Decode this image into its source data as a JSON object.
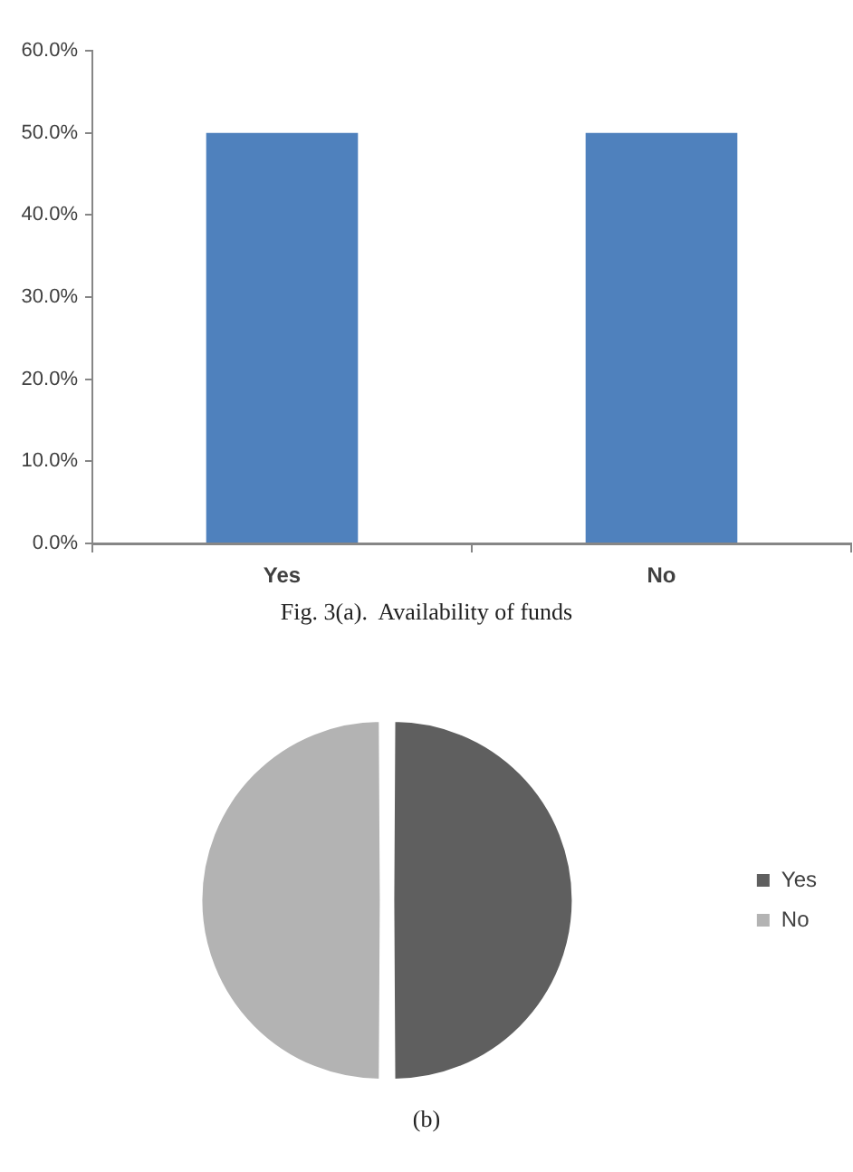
{
  "chart_data": [
    {
      "type": "bar",
      "categories": [
        "Yes",
        "No"
      ],
      "values": [
        50,
        50
      ],
      "color": "#4f81bd",
      "ylim": [
        0,
        60
      ],
      "yticks": [
        {
          "value": 0,
          "label": "0.0%"
        },
        {
          "value": 10,
          "label": "10.0%"
        },
        {
          "value": 20,
          "label": "20.0%"
        },
        {
          "value": 30,
          "label": "30.0%"
        },
        {
          "value": 40,
          "label": "40.0%"
        },
        {
          "value": 50,
          "label": "50.0%"
        },
        {
          "value": 60,
          "label": "60.0%"
        }
      ],
      "annotations": [
        "Fig. 3(a).  Availability of funds"
      ]
    },
    {
      "type": "pie",
      "categories": [
        "Yes",
        "No"
      ],
      "values": [
        50,
        50
      ],
      "colors": [
        "#5f5f5f",
        "#b3b3b3"
      ],
      "legend": "right",
      "annotations": [
        "(b)"
      ]
    }
  ]
}
